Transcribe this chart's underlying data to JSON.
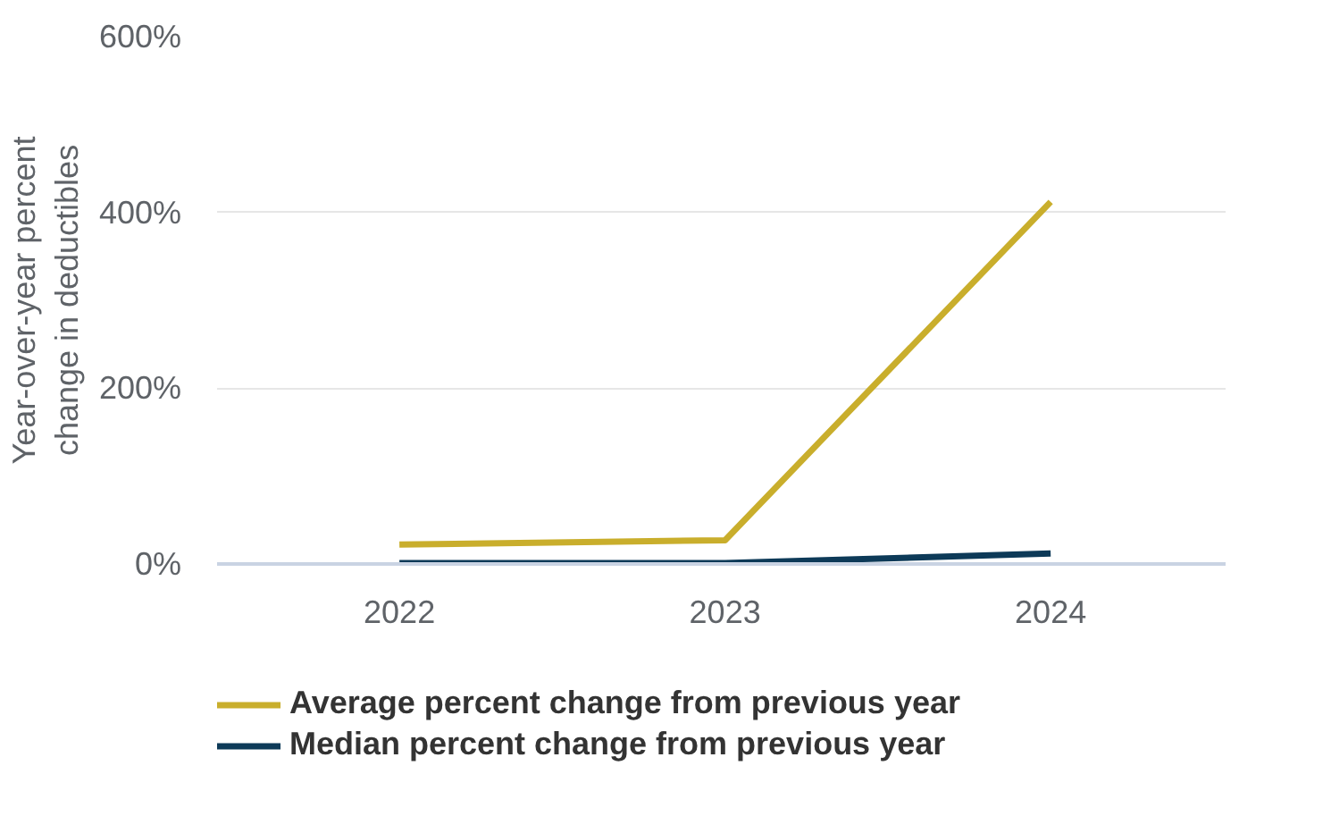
{
  "chart_data": {
    "type": "line",
    "ylabel": "Year-over-year percent\nchange in deductibles",
    "categories": [
      "2022",
      "2023",
      "2024"
    ],
    "series": [
      {
        "name": "Average percent change from previous year",
        "color": "#c9ae2c",
        "values": [
          22,
          27,
          412
        ]
      },
      {
        "name": "Median percent change from previous year",
        "color": "#0d3a58",
        "values": [
          1,
          1,
          12
        ]
      }
    ],
    "ylim": [
      0,
      600
    ],
    "yticks": [
      {
        "value": 0,
        "label": "0%"
      },
      {
        "value": 200,
        "label": "200%"
      },
      {
        "value": 400,
        "label": "400%"
      },
      {
        "value": 600,
        "label": "600%"
      }
    ],
    "grid": "y",
    "legend": "bottom"
  }
}
